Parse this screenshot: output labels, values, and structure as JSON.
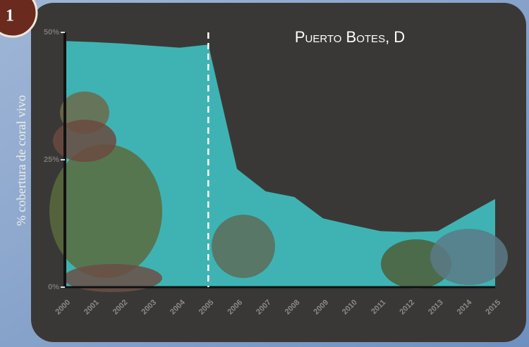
{
  "badge": "1",
  "chart_data": {
    "type": "area",
    "title": "Puerto Botes, D",
    "y_label": "% cobertura de coral vivo",
    "x": [
      2000,
      2001,
      2002,
      2003,
      2004,
      2005,
      2006,
      2007,
      2008,
      2009,
      2010,
      2011,
      2012,
      2013,
      2014,
      2015
    ],
    "values": [
      48.3,
      48.1,
      47.8,
      47.4,
      47,
      47.6,
      23.2,
      18.8,
      17.7,
      13.5,
      12.2,
      11,
      10.8,
      11,
      14.2,
      17.3
    ],
    "color": "#3fb3b3",
    "xlim": [
      2000,
      2015
    ],
    "ylim": [
      0,
      50
    ],
    "yticks": [
      {
        "value": 0,
        "label": "0%"
      },
      {
        "value": 25,
        "label": "25%"
      },
      {
        "value": 50,
        "label": "50%"
      }
    ],
    "vline": 2005
  }
}
